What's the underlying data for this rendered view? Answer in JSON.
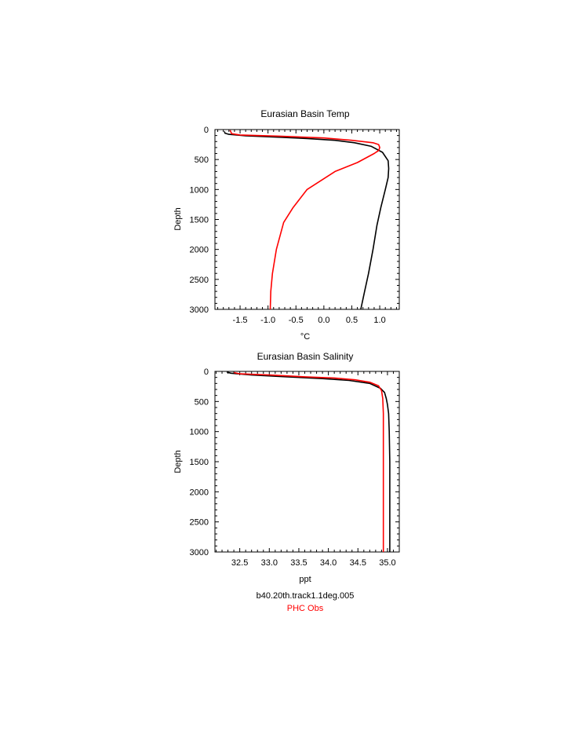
{
  "chart_data": [
    {
      "type": "line",
      "title": "Eurasian Basin Temp",
      "xlabel": "°C",
      "ylabel": "Depth",
      "xlim": [
        -1.95,
        1.35
      ],
      "ylim": [
        3000,
        0
      ],
      "y_inverted": true,
      "xticks": [
        -1.5,
        -1.0,
        -0.5,
        0.0,
        0.5,
        1.0
      ],
      "xtick_labels": [
        "-1.5",
        "-1.0",
        "-0.5",
        "0.0",
        "0.5",
        "1.0"
      ],
      "yticks": [
        0,
        500,
        1000,
        1500,
        2000,
        2500,
        3000
      ],
      "ytick_labels": [
        "0",
        "500",
        "1000",
        "1500",
        "2000",
        "2500",
        "3000"
      ],
      "grid": false,
      "series": [
        {
          "name": "b40.20th.track1.1deg.005",
          "color": "#000000",
          "x": [
            -1.78,
            -1.77,
            -1.7,
            -1.4,
            -0.9,
            -0.3,
            0.2,
            0.55,
            0.85,
            1.05,
            1.15,
            1.16,
            1.15,
            1.1,
            1.02,
            0.95,
            0.88,
            0.8,
            0.73,
            0.66
          ],
          "y": [
            30,
            60,
            80,
            105,
            125,
            150,
            180,
            220,
            280,
            380,
            520,
            650,
            800,
            1000,
            1300,
            1600,
            2000,
            2400,
            2700,
            3000
          ]
        },
        {
          "name": "PHC Obs",
          "color": "#ff0000",
          "x": [
            -1.68,
            -1.65,
            -1.5,
            -0.8,
            0.0,
            0.5,
            0.88,
            0.98,
            1.0,
            0.98,
            0.9,
            0.6,
            0.2,
            -0.3,
            -0.55,
            -0.72,
            -0.85,
            -0.92,
            -0.95,
            -0.96
          ],
          "y": [
            10,
            70,
            90,
            110,
            140,
            180,
            220,
            250,
            300,
            350,
            400,
            550,
            700,
            1000,
            1300,
            1550,
            2000,
            2400,
            2700,
            3000
          ]
        }
      ]
    },
    {
      "type": "line",
      "title": "Eurasian Basin Salinity",
      "xlabel": "ppt",
      "ylabel": "Depth",
      "xlim": [
        32.08,
        35.2
      ],
      "ylim": [
        3000,
        0
      ],
      "y_inverted": true,
      "xticks": [
        32.5,
        33.0,
        33.5,
        34.0,
        34.5,
        35.0
      ],
      "xtick_labels": [
        "32.5",
        "33.0",
        "33.5",
        "34.0",
        "34.5",
        "35.0"
      ],
      "yticks": [
        0,
        500,
        1000,
        1500,
        2000,
        2500,
        3000
      ],
      "ytick_labels": [
        "0",
        "500",
        "1000",
        "1500",
        "2000",
        "2500",
        "3000"
      ],
      "grid": false,
      "series": [
        {
          "name": "b40.20th.track1.1deg.005",
          "color": "#000000",
          "x": [
            32.28,
            32.35,
            32.7,
            33.3,
            33.9,
            34.35,
            34.7,
            34.88,
            34.95,
            34.98,
            35.0,
            35.02,
            35.03,
            35.04,
            35.04,
            35.04
          ],
          "y": [
            10,
            30,
            60,
            90,
            120,
            150,
            200,
            280,
            350,
            450,
            550,
            700,
            1000,
            1500,
            2200,
            3000
          ]
        },
        {
          "name": "PHC Obs",
          "color": "#ff0000",
          "x": [
            32.4,
            32.5,
            33.0,
            33.6,
            34.1,
            34.45,
            34.7,
            34.85,
            34.9,
            34.92,
            34.93,
            34.93,
            34.93,
            34.93
          ],
          "y": [
            20,
            40,
            60,
            90,
            110,
            140,
            180,
            240,
            320,
            450,
            700,
            1200,
            2000,
            3000
          ]
        }
      ]
    }
  ],
  "legend": {
    "items": [
      {
        "label": "b40.20th.track1.1deg.005",
        "color": "#000000"
      },
      {
        "label": "PHC Obs",
        "color": "#ff0000"
      }
    ]
  }
}
